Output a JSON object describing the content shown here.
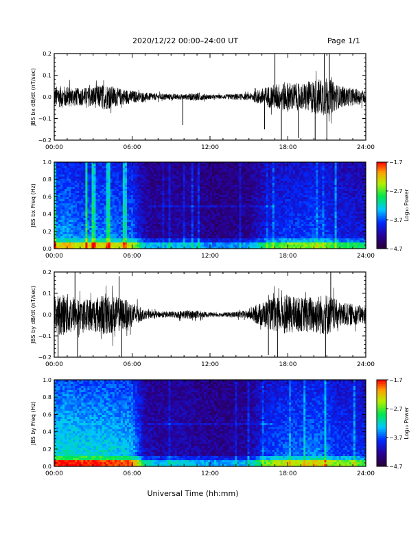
{
  "header": {
    "title": "2020/12/22  00:00–24:00 UT",
    "page": "Page 1/1"
  },
  "common_xlabel": "Universal Time (hh:mm)",
  "chart_data": [
    {
      "type": "line",
      "id": "p1",
      "ylabel": "JBS bx dB/dt (nT/sec)",
      "xlim": [
        0,
        24
      ],
      "ylim": [
        -0.2,
        0.2
      ],
      "x_ticks": [
        "00:00",
        "06:00",
        "12:00",
        "18:00",
        "24:00"
      ],
      "y_ticks": [
        "0.2",
        "0.1",
        "0.0",
        "−0.1",
        "−0.2"
      ],
      "grid": false,
      "envelope": {
        "hours": [
          0,
          1,
          2,
          3,
          4,
          5,
          6,
          7,
          8,
          9,
          10,
          11,
          12,
          13,
          14,
          15,
          16,
          17,
          18,
          19,
          20,
          21,
          22,
          23,
          24
        ],
        "amplitude": [
          0.05,
          0.05,
          0.04,
          0.05,
          0.06,
          0.04,
          0.03,
          0.02,
          0.015,
          0.015,
          0.012,
          0.02,
          0.01,
          0.01,
          0.015,
          0.015,
          0.04,
          0.06,
          0.07,
          0.06,
          0.08,
          0.09,
          0.05,
          0.04,
          0.03
        ]
      },
      "spikes": [
        {
          "hour": 9.9,
          "value": -0.13
        },
        {
          "hour": 16.2,
          "value": -0.15
        },
        {
          "hour": 17.0,
          "value": 0.19
        },
        {
          "hour": 17.5,
          "value": -0.2
        },
        {
          "hour": 18.8,
          "value": -0.19
        },
        {
          "hour": 20.1,
          "value": -0.2
        },
        {
          "hour": 20.8,
          "value": 0.2
        },
        {
          "hour": 21.0,
          "value": -0.2
        },
        {
          "hour": 21.2,
          "value": 0.2
        }
      ]
    },
    {
      "type": "heatmap",
      "id": "p2",
      "ylabel": "JBS bx Freq (Hz)",
      "xlim": [
        0,
        24
      ],
      "ylim": [
        0,
        1.0
      ],
      "x_ticks": [
        "00:00",
        "06:00",
        "12:00",
        "18:00",
        "24:00"
      ],
      "y_ticks": [
        "1.0",
        "0.8",
        "0.6",
        "0.4",
        "0.2",
        "0.0"
      ],
      "colorbar": {
        "label": "Log₁₀ Power",
        "ticks": [
          "−1.7",
          "−2.7",
          "−3.7",
          "−4.7"
        ],
        "range": [
          -4.7,
          -1.7
        ]
      },
      "activity": [
        0.55,
        0.6,
        0.5,
        0.55,
        0.55,
        0.5,
        0.5,
        0.15,
        0.1,
        0.12,
        0.12,
        0.1,
        0.05,
        0.05,
        0.06,
        0.08,
        0.25,
        0.35,
        0.4,
        0.4,
        0.45,
        0.4,
        0.3,
        0.3,
        0.25
      ],
      "transition_hour": 7.2
    },
    {
      "type": "line",
      "id": "p3",
      "ylabel": "JBS by dB/dt (nT/sec)",
      "xlim": [
        0,
        24
      ],
      "ylim": [
        -0.2,
        0.2
      ],
      "x_ticks": [
        "00:00",
        "06:00",
        "12:00",
        "18:00",
        "24:00"
      ],
      "y_ticks": [
        "0.2",
        "0.1",
        "0.0",
        "−0.1",
        "−0.2"
      ],
      "grid": false,
      "envelope": {
        "hours": [
          0,
          1,
          2,
          3,
          4,
          5,
          6,
          7,
          8,
          9,
          10,
          11,
          12,
          13,
          14,
          15,
          16,
          17,
          18,
          19,
          20,
          21,
          22,
          23,
          24
        ],
        "amplitude": [
          0.09,
          0.1,
          0.07,
          0.08,
          0.1,
          0.08,
          0.06,
          0.02,
          0.015,
          0.015,
          0.02,
          0.02,
          0.01,
          0.01,
          0.015,
          0.02,
          0.06,
          0.08,
          0.09,
          0.08,
          0.09,
          0.1,
          0.06,
          0.05,
          0.04
        ]
      },
      "spikes": [
        {
          "hour": 0.3,
          "value": -0.2
        },
        {
          "hour": 1.6,
          "value": 0.2
        },
        {
          "hour": 1.8,
          "value": -0.2
        },
        {
          "hour": 5.0,
          "value": 0.18
        },
        {
          "hour": 5.2,
          "value": -0.2
        },
        {
          "hour": 16.5,
          "value": -0.19
        },
        {
          "hour": 17.2,
          "value": -0.2
        },
        {
          "hour": 20.9,
          "value": -0.2
        },
        {
          "hour": 21.3,
          "value": 0.2
        }
      ]
    },
    {
      "type": "heatmap",
      "id": "p4",
      "ylabel": "JBS by Freq (Hz)",
      "xlim": [
        0,
        24
      ],
      "ylim": [
        0,
        1.0
      ],
      "x_ticks": [
        "00:00",
        "06:00",
        "12:00",
        "18:00",
        "24:00"
      ],
      "y_ticks": [
        "1.0",
        "0.8",
        "0.6",
        "0.4",
        "0.2",
        "0.0"
      ],
      "colorbar": {
        "label": "Log₁₀ Power",
        "ticks": [
          "−1.7",
          "−2.7",
          "−3.7",
          "−4.7"
        ],
        "range": [
          -4.7,
          -1.7
        ]
      },
      "activity": [
        0.75,
        0.8,
        0.75,
        0.75,
        0.75,
        0.7,
        0.7,
        0.2,
        0.12,
        0.15,
        0.15,
        0.12,
        0.08,
        0.08,
        0.1,
        0.1,
        0.35,
        0.45,
        0.5,
        0.5,
        0.55,
        0.5,
        0.4,
        0.4,
        0.35
      ],
      "transition_hour": 7.2
    }
  ]
}
